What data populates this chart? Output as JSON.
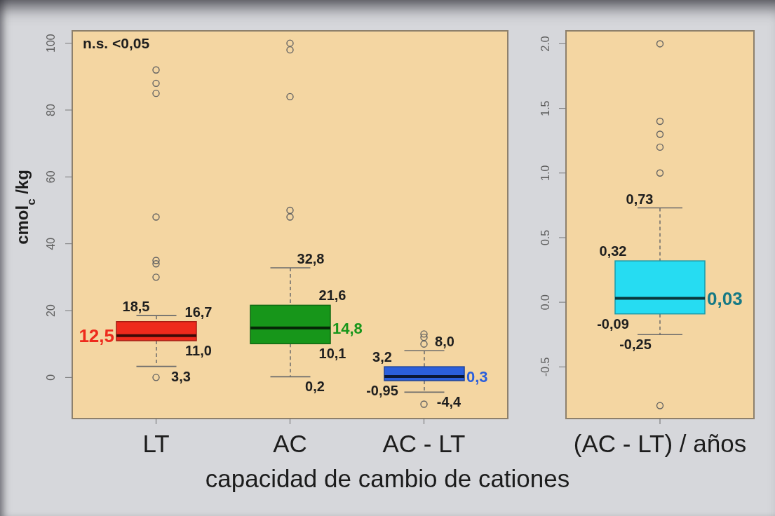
{
  "chart_data": [
    {
      "type": "box",
      "categories": [
        "LT",
        "AC",
        "AC - LT"
      ],
      "colors": [
        "#ee2a1c",
        "#17961a",
        "#2b5fdc"
      ],
      "boxes": [
        {
          "low": 3.3,
          "q1": 11.0,
          "median": 12.5,
          "q3": 16.7,
          "high": 18.5,
          "outliers": [
            92,
            88,
            85,
            48,
            35,
            34,
            30,
            0
          ]
        },
        {
          "low": 0.2,
          "q1": 10.1,
          "median": 14.8,
          "q3": 21.6,
          "high": 32.8,
          "outliers": [
            100,
            98,
            84,
            50,
            48
          ]
        },
        {
          "low": -4.4,
          "q1": -0.95,
          "median": 0.3,
          "q3": 3.2,
          "high": 8.0,
          "outliers": [
            13,
            12,
            10,
            -8
          ]
        }
      ],
      "ylabel": "cmol$_{c}$ /kg",
      "xlabel": "capacidad de cambio de cationes",
      "ylim": [
        -12.3,
        103.7
      ],
      "yticks": [
        0,
        20,
        40,
        60,
        80,
        100
      ],
      "annotations": [
        "n.s. <0,05",
        {
          "text": "18,5",
          "x": "LT",
          "y": 18.5
        },
        {
          "text": "16,7",
          "x": "LT",
          "y": 16.7
        },
        {
          "text": "12,5",
          "x": "LT",
          "y": 12.5
        },
        {
          "text": "11,0",
          "x": "LT",
          "y": 11.0
        },
        {
          "text": "3,3",
          "x": "LT",
          "y": 3.3
        },
        {
          "text": "32,8",
          "x": "AC",
          "y": 32.8
        },
        {
          "text": "21,6",
          "x": "AC",
          "y": 21.6
        },
        {
          "text": "14,8",
          "x": "AC",
          "y": 14.8
        },
        {
          "text": "10,1",
          "x": "AC",
          "y": 10.1
        },
        {
          "text": "0,2",
          "x": "AC",
          "y": 0.2
        },
        {
          "text": "8,0",
          "x": "AC - LT",
          "y": 8.0
        },
        {
          "text": "3,2",
          "x": "AC - LT",
          "y": 3.2
        },
        {
          "text": "0,3",
          "x": "AC - LT",
          "y": 0.3
        },
        {
          "text": "-0,95",
          "x": "AC - LT",
          "y": -0.95
        },
        {
          "text": "-4,4",
          "x": "AC - LT",
          "y": -4.4
        }
      ]
    },
    {
      "type": "box",
      "categories": [
        "(AC - LT) / años"
      ],
      "colors": [
        "#26dcf2"
      ],
      "boxes": [
        {
          "low": -0.25,
          "q1": -0.09,
          "median": 0.03,
          "q3": 0.32,
          "high": 0.73,
          "outliers": [
            2.0,
            1.4,
            1.3,
            1.2,
            1.0,
            -0.8
          ]
        }
      ],
      "ylim": [
        -0.9,
        2.1
      ],
      "yticks": [
        -0.5,
        {
          "value": 0,
          "label": "0.0"
        },
        0.5,
        {
          "value": 1,
          "label": "1.0"
        },
        1.5,
        {
          "value": 2,
          "label": "2.0"
        }
      ],
      "annotations": [
        {
          "text": "0,73",
          "x": "(AC - LT) / años",
          "y": 0.73
        },
        {
          "text": "0,32",
          "x": "(AC - LT) / años",
          "y": 0.32
        },
        {
          "text": "0,03",
          "x": "(AC - LT) / años",
          "y": 0.03
        },
        {
          "text": "-0,09",
          "x": "(AC - LT) / años",
          "y": -0.09
        },
        {
          "text": "-0,25",
          "x": "(AC - LT) / años",
          "y": -0.25
        }
      ]
    }
  ]
}
